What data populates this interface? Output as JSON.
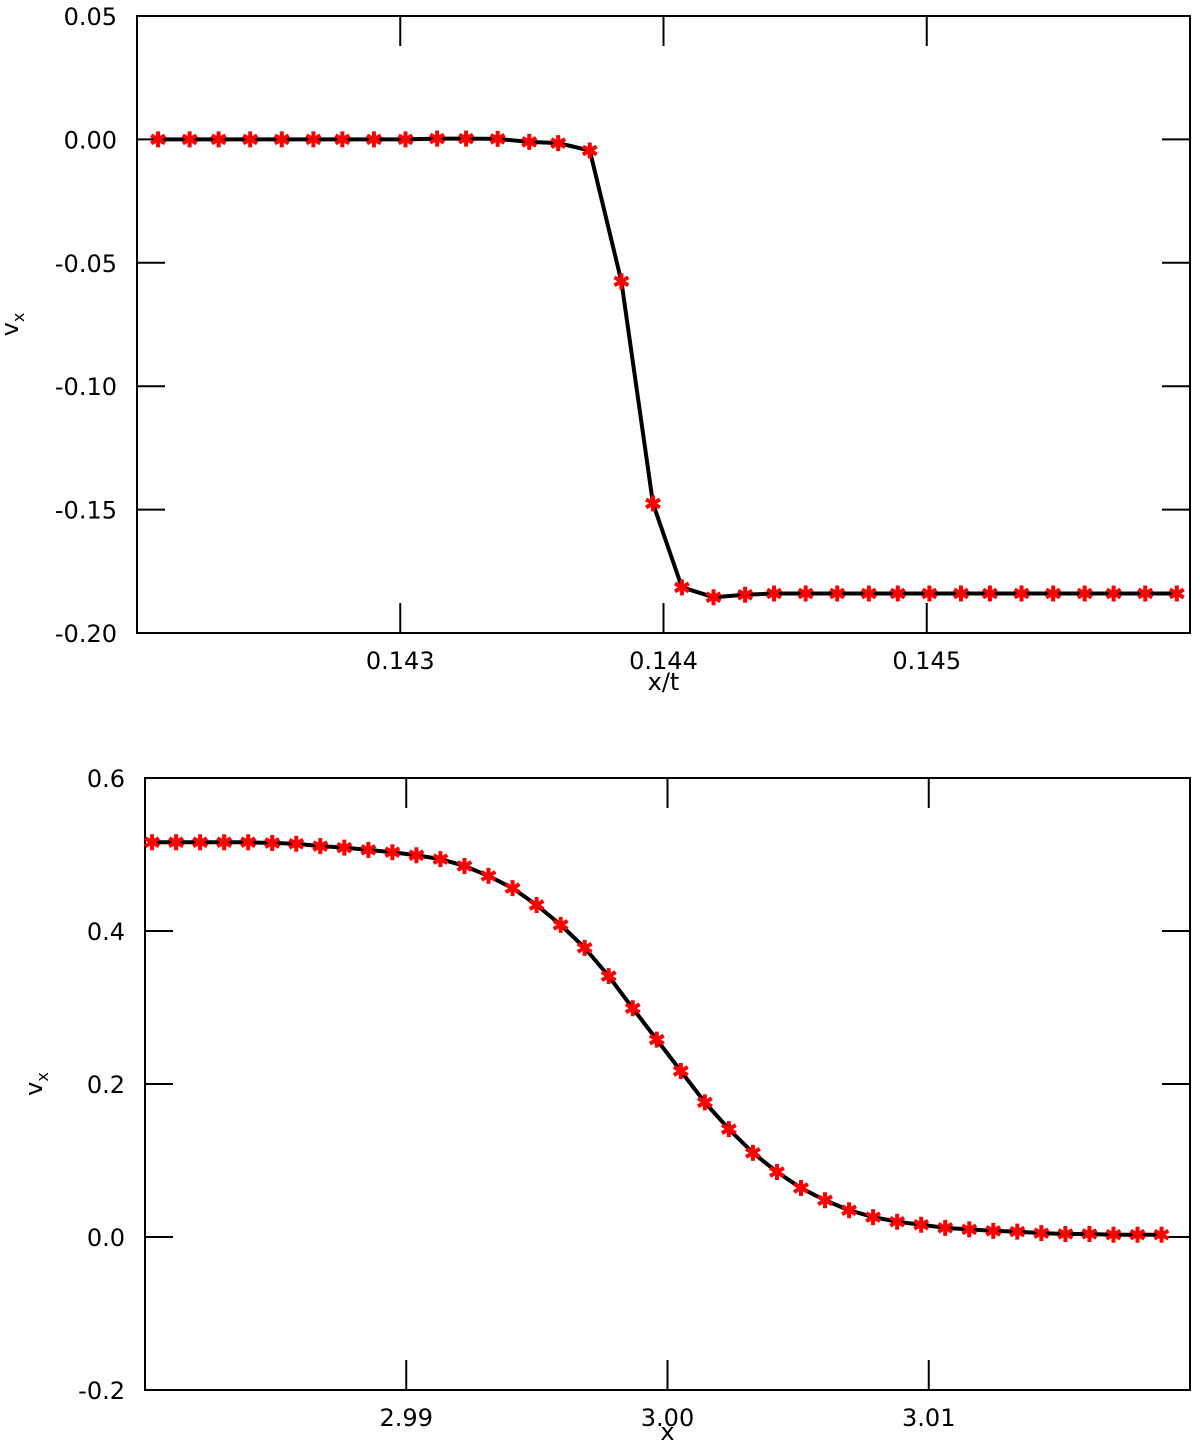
{
  "chart_data": [
    {
      "type": "line",
      "xlabel": "x/t",
      "ylabel": "v",
      "ylabel_sub": "x",
      "x": [
        0.14208,
        0.1422,
        0.14231,
        0.14243,
        0.14255,
        0.14267,
        0.14278,
        0.1429,
        0.14302,
        0.14314,
        0.14325,
        0.14337,
        0.14349,
        0.1436,
        0.14372,
        0.14384,
        0.14396,
        0.14407,
        0.14419,
        0.14431,
        0.14442,
        0.14454,
        0.14466,
        0.14478,
        0.14489,
        0.14501,
        0.14513,
        0.14524,
        0.14536,
        0.14548,
        0.1456,
        0.14571,
        0.14583,
        0.14595
      ],
      "series": [
        {
          "color": "#000000",
          "marker_color": "#ff0000",
          "values": [
            0,
            0,
            0,
            0,
            0,
            0,
            0,
            0,
            0,
            0.0003,
            0.0003,
            0.0002,
            -0.001,
            -0.0015,
            -0.0045,
            -0.0575,
            -0.1475,
            -0.1815,
            -0.1855,
            -0.1845,
            -0.184,
            -0.184,
            -0.184,
            -0.184,
            -0.184,
            -0.184,
            -0.184,
            -0.184,
            -0.184,
            -0.184,
            -0.184,
            -0.184,
            -0.184,
            -0.184
          ]
        }
      ],
      "xlim": [
        0.142,
        0.146
      ],
      "xticks": [
        0.143,
        0.144,
        0.145
      ],
      "ylim": [
        -0.2,
        0.05
      ],
      "yticks": [
        {
          "value": -0.2,
          "label": "-0.20"
        },
        -0.15,
        {
          "value": -0.1,
          "label": "-0.10"
        },
        -0.05,
        {
          "value": 0,
          "label": "0.00"
        },
        0.05
      ]
    },
    {
      "type": "line",
      "xlabel": "x",
      "ylabel": "v",
      "ylabel_sub": "x",
      "x": [
        2.98027,
        2.98119,
        2.98211,
        2.98303,
        2.98395,
        2.98487,
        2.98579,
        2.98671,
        2.98763,
        2.98855,
        2.98947,
        2.99039,
        2.99131,
        2.99223,
        2.99315,
        2.99407,
        2.99499,
        2.99591,
        2.99683,
        2.99775,
        2.99867,
        2.99959,
        3.00051,
        3.00143,
        3.00235,
        3.00327,
        3.00419,
        3.00511,
        3.00603,
        3.00695,
        3.00787,
        3.00879,
        3.00971,
        3.01063,
        3.01155,
        3.01247,
        3.01339,
        3.01431,
        3.01523,
        3.01615,
        3.01707,
        3.01799,
        3.01891
      ],
      "series": [
        {
          "color": "#000000",
          "marker_color": "#ff0000",
          "values": [
            0.516,
            0.516,
            0.516,
            0.516,
            0.516,
            0.515,
            0.514,
            0.511,
            0.509,
            0.506,
            0.503,
            0.499,
            0.494,
            0.485,
            0.472,
            0.456,
            0.434,
            0.408,
            0.378,
            0.341,
            0.299,
            0.258,
            0.217,
            0.176,
            0.141,
            0.11,
            0.085,
            0.064,
            0.048,
            0.035,
            0.026,
            0.02,
            0.016,
            0.012,
            0.01,
            0.008,
            0.007,
            0.005,
            0.004,
            0.004,
            0.003,
            0.003,
            0.003
          ]
        }
      ],
      "xlim": [
        2.98,
        3.02
      ],
      "xticks": [
        2.99,
        {
          "value": 3,
          "label": "3.00"
        },
        3.01
      ],
      "ylim": [
        -0.2,
        0.6
      ],
      "yticks": [
        -0.2,
        {
          "value": 0,
          "label": "0.0"
        },
        0.2,
        0.4,
        0.6
      ]
    }
  ]
}
